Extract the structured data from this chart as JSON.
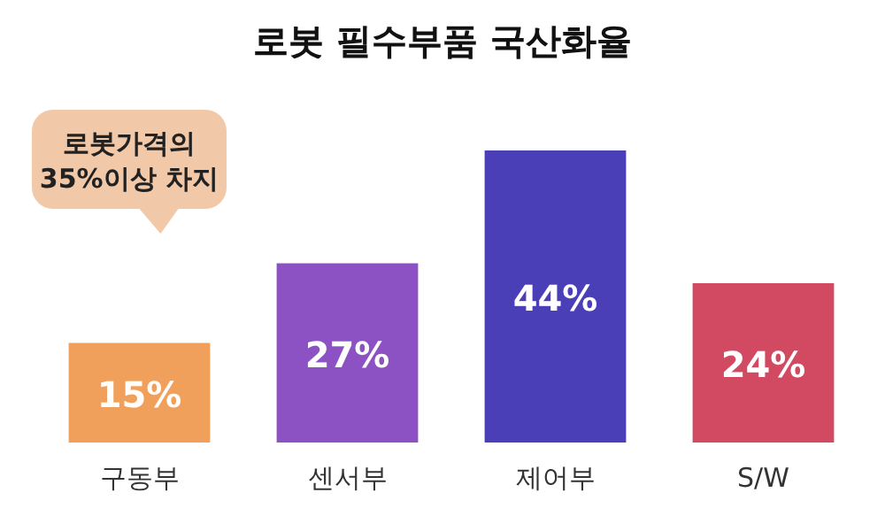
{
  "chart_data": {
    "type": "bar",
    "title": "로봇 필수부품 국산화율",
    "categories": [
      "구동부",
      "센서부",
      "제어부",
      "S/W"
    ],
    "values": [
      15,
      27,
      44,
      24
    ],
    "colors": [
      "#f0a05a",
      "#8c52c4",
      "#4b3fb8",
      "#d24a62"
    ],
    "value_labels": [
      "15%",
      "27%",
      "44%",
      "24%"
    ],
    "annotations": [
      "로봇가격의\n35%이상 차지"
    ]
  }
}
